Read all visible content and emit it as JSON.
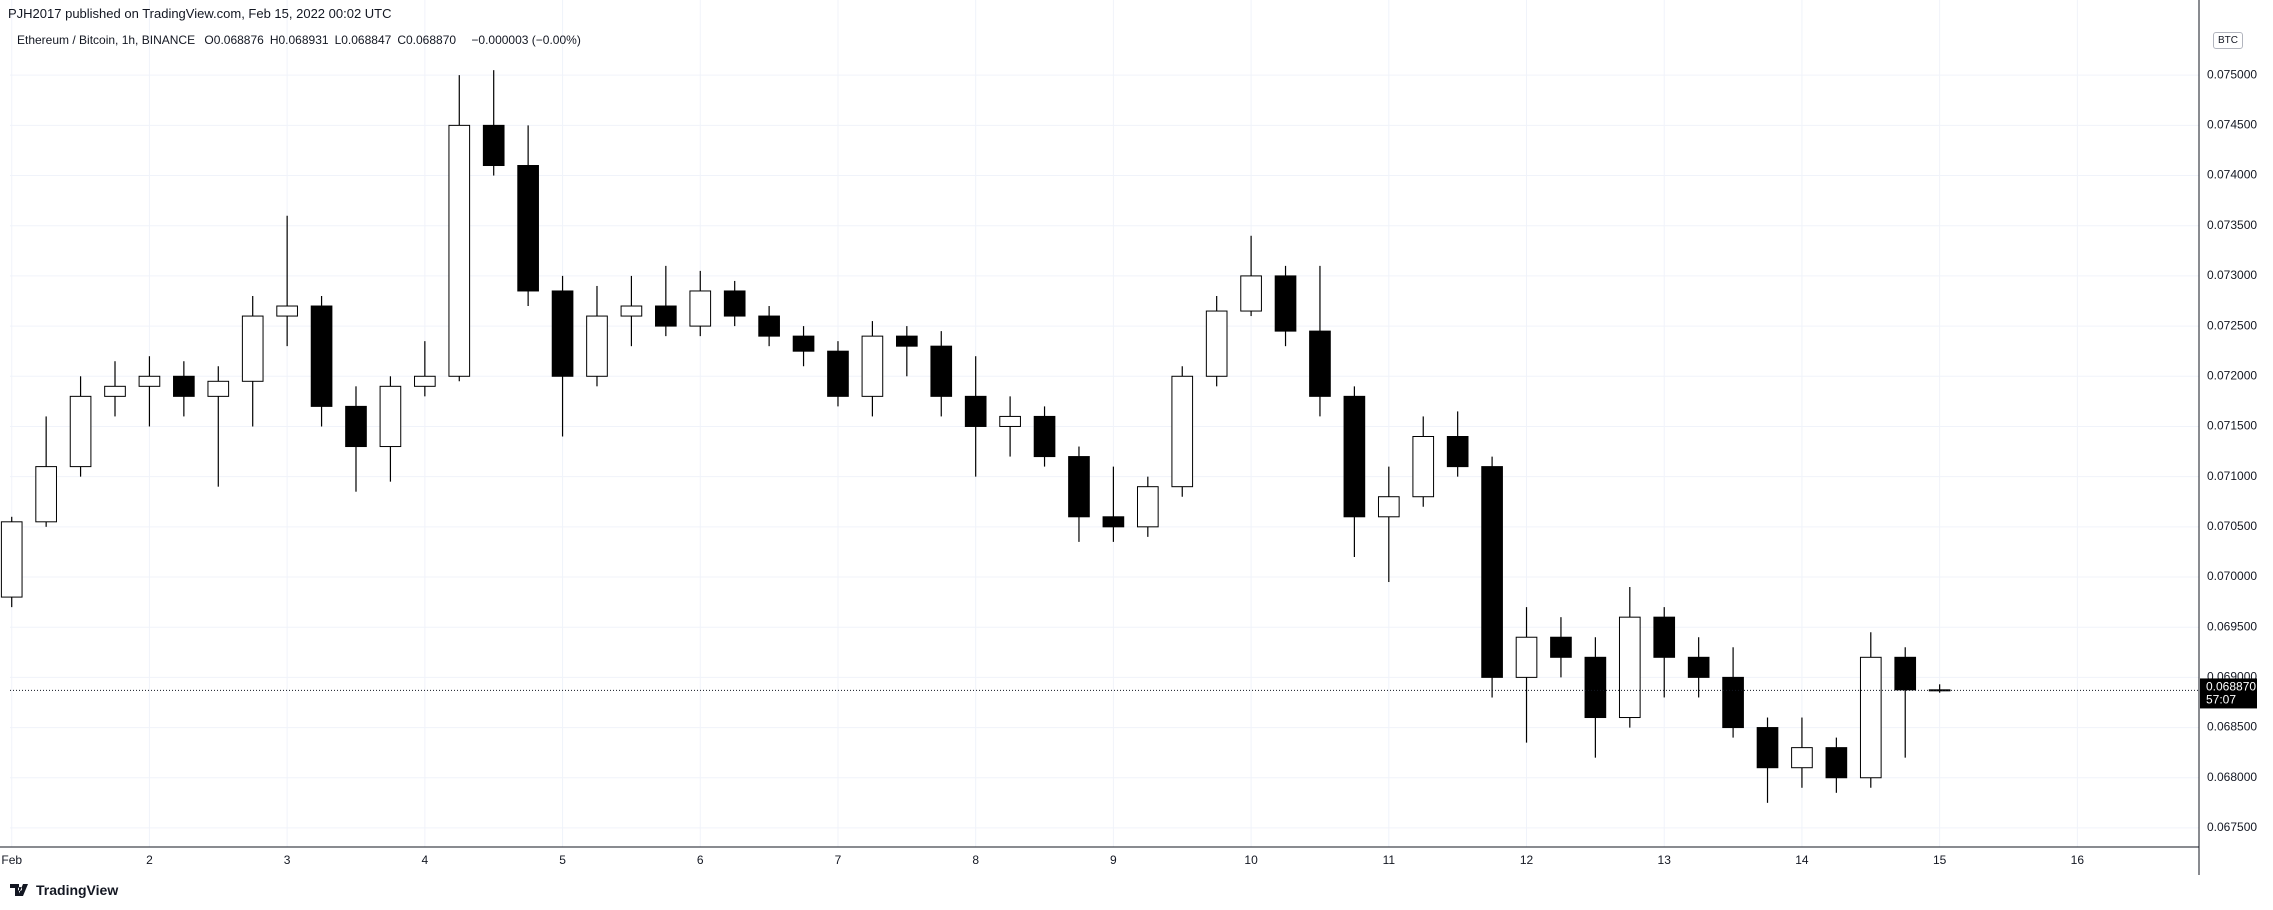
{
  "header": "PJH2017 published on TradingView.com, Feb 15, 2022 00:02 UTC",
  "footer": "TradingView",
  "chart_data": {
    "type": "candlestick",
    "symbol": "Ethereum / Bitcoin, 1h, BINANCE",
    "currency": "BTC",
    "ohlc_legend": [
      {
        "label": "O",
        "value": "0.068876"
      },
      {
        "label": "H",
        "value": "0.068931"
      },
      {
        "label": "L",
        "value": "0.068847"
      },
      {
        "label": "C",
        "value": "0.068870"
      }
    ],
    "change": "−0.000003 (−0.00%)",
    "countdown": "57:07",
    "up_color": "#ffffff",
    "down_color": "#000000",
    "wick_color": "#000000",
    "grid": true,
    "x": [
      0,
      6,
      12,
      18,
      24,
      30,
      36,
      42,
      48,
      54,
      60,
      66,
      72,
      78,
      84,
      90,
      96,
      102,
      108,
      114,
      120,
      126,
      132,
      138,
      144,
      150,
      156,
      162,
      168,
      174,
      180,
      186,
      192,
      198,
      204,
      210,
      216,
      222,
      228,
      234,
      240,
      246,
      252,
      258,
      264,
      270,
      276,
      282,
      288,
      294,
      300,
      306,
      312,
      318,
      324,
      330,
      336
    ],
    "open": [
      0.0698,
      0.07055,
      0.0711,
      0.0718,
      0.0719,
      0.072,
      0.0718,
      0.07195,
      0.0726,
      0.0727,
      0.0717,
      0.0713,
      0.0719,
      0.072,
      0.0745,
      0.0741,
      0.07285,
      0.072,
      0.0726,
      0.0727,
      0.0725,
      0.07285,
      0.0726,
      0.0724,
      0.07225,
      0.0718,
      0.0724,
      0.0723,
      0.0718,
      0.0715,
      0.0716,
      0.0712,
      0.0706,
      0.0705,
      0.0709,
      0.072,
      0.07265,
      0.073,
      0.07245,
      0.0718,
      0.0706,
      0.0708,
      0.0714,
      0.0711,
      0.069,
      0.0694,
      0.0692,
      0.0686,
      0.0696,
      0.0692,
      0.069,
      0.0685,
      0.0681,
      0.0683,
      0.068,
      0.0692,
      0.068876
    ],
    "high": [
      0.0706,
      0.0716,
      0.072,
      0.07215,
      0.0722,
      0.07215,
      0.0721,
      0.0728,
      0.0736,
      0.0728,
      0.0719,
      0.072,
      0.07235,
      0.075,
      0.07505,
      0.0745,
      0.073,
      0.0729,
      0.073,
      0.0731,
      0.07305,
      0.07295,
      0.0727,
      0.0725,
      0.07235,
      0.07255,
      0.0725,
      0.07245,
      0.0722,
      0.0718,
      0.0717,
      0.0713,
      0.0711,
      0.071,
      0.0721,
      0.0728,
      0.0734,
      0.0731,
      0.0731,
      0.0719,
      0.0711,
      0.0716,
      0.07165,
      0.0712,
      0.0697,
      0.0696,
      0.0694,
      0.0699,
      0.0697,
      0.0694,
      0.0693,
      0.0686,
      0.0686,
      0.0684,
      0.06945,
      0.0693,
      0.068931
    ],
    "low": [
      0.0697,
      0.0705,
      0.071,
      0.0716,
      0.0715,
      0.0716,
      0.0709,
      0.0715,
      0.0723,
      0.0715,
      0.07085,
      0.07095,
      0.0718,
      0.07195,
      0.074,
      0.0727,
      0.0714,
      0.0719,
      0.0723,
      0.0724,
      0.0724,
      0.0725,
      0.0723,
      0.0721,
      0.0717,
      0.0716,
      0.072,
      0.0716,
      0.071,
      0.0712,
      0.0711,
      0.07035,
      0.07035,
      0.0704,
      0.0708,
      0.0719,
      0.0726,
      0.0723,
      0.0716,
      0.0702,
      0.06995,
      0.0707,
      0.071,
      0.0688,
      0.06835,
      0.069,
      0.0682,
      0.0685,
      0.0688,
      0.0688,
      0.0684,
      0.06775,
      0.0679,
      0.06785,
      0.0679,
      0.0682,
      0.068847
    ],
    "close": [
      0.07055,
      0.0711,
      0.0718,
      0.0719,
      0.072,
      0.0718,
      0.07195,
      0.0726,
      0.0727,
      0.0717,
      0.0713,
      0.0719,
      0.072,
      0.0745,
      0.0741,
      0.07285,
      0.072,
      0.0726,
      0.0727,
      0.0725,
      0.07285,
      0.0726,
      0.0724,
      0.07225,
      0.0718,
      0.0724,
      0.0723,
      0.0718,
      0.0715,
      0.0716,
      0.0712,
      0.0706,
      0.0705,
      0.0709,
      0.072,
      0.07265,
      0.073,
      0.07245,
      0.0718,
      0.0706,
      0.0708,
      0.0714,
      0.0711,
      0.069,
      0.0694,
      0.0692,
      0.0686,
      0.0696,
      0.0692,
      0.069,
      0.0685,
      0.0681,
      0.0683,
      0.068,
      0.0692,
      0.068876,
      0.06887
    ],
    "xlim": [
      -0.3,
      381.2
    ],
    "ylim": [
      0.06731,
      0.07549
    ],
    "xticks": [
      {
        "value": 0,
        "label": "Feb"
      },
      {
        "value": 24,
        "label": "2"
      },
      {
        "value": 48,
        "label": "3"
      },
      {
        "value": 72,
        "label": "4"
      },
      {
        "value": 96,
        "label": "5"
      },
      {
        "value": 120,
        "label": "6"
      },
      {
        "value": 144,
        "label": "7"
      },
      {
        "value": 168,
        "label": "8"
      },
      {
        "value": 192,
        "label": "9"
      },
      {
        "value": 216,
        "label": "10"
      },
      {
        "value": 240,
        "label": "11"
      },
      {
        "value": 264,
        "label": "12"
      },
      {
        "value": 288,
        "label": "13"
      },
      {
        "value": 312,
        "label": "14"
      },
      {
        "value": 336,
        "label": "15"
      },
      {
        "value": 360,
        "label": "16"
      }
    ],
    "yticks": [
      {
        "value": 0.0675,
        "label": "0.067500"
      },
      {
        "value": 0.068,
        "label": "0.068000"
      },
      {
        "value": 0.0685,
        "label": "0.068500"
      },
      {
        "value": 0.069,
        "label": "0.069000"
      },
      {
        "value": 0.0695,
        "label": "0.069500"
      },
      {
        "value": 0.07,
        "label": "0.070000"
      },
      {
        "value": 0.0705,
        "label": "0.070500"
      },
      {
        "value": 0.071,
        "label": "0.071000"
      },
      {
        "value": 0.0715,
        "label": "0.071500"
      },
      {
        "value": 0.072,
        "label": "0.072000"
      },
      {
        "value": 0.0725,
        "label": "0.072500"
      },
      {
        "value": 0.073,
        "label": "0.073000"
      },
      {
        "value": 0.0735,
        "label": "0.073500"
      },
      {
        "value": 0.074,
        "label": "0.074000"
      },
      {
        "value": 0.0745,
        "label": "0.074500"
      },
      {
        "value": 0.075,
        "label": "0.075000"
      }
    ]
  }
}
